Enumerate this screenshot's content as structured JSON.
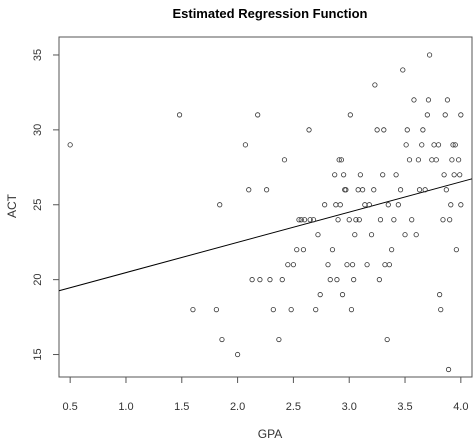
{
  "chart_data": {
    "type": "scatter",
    "title": "Estimated Regression Function",
    "xlabel": "GPA",
    "ylabel": "ACT",
    "xlim": [
      0.4,
      4.1
    ],
    "ylim": [
      13.5,
      36.2
    ],
    "x_ticks": [
      "0.5",
      "1.0",
      "1.5",
      "2.0",
      "2.5",
      "3.0",
      "3.5",
      "4.0"
    ],
    "y_ticks": [
      "15",
      "20",
      "25",
      "30",
      "35"
    ],
    "grid": false,
    "marker": "open-circle",
    "colors": {
      "points": "#333333",
      "line": "#000000",
      "axes": "#555555"
    },
    "regression_line": {
      "intercept": 18.45,
      "slope": 2.02
    },
    "points": [
      {
        "x": 0.5,
        "y": 29
      },
      {
        "x": 1.48,
        "y": 31
      },
      {
        "x": 1.6,
        "y": 18
      },
      {
        "x": 1.81,
        "y": 18
      },
      {
        "x": 1.84,
        "y": 25
      },
      {
        "x": 1.86,
        "y": 16
      },
      {
        "x": 2.0,
        "y": 15
      },
      {
        "x": 2.07,
        "y": 29
      },
      {
        "x": 2.1,
        "y": 26
      },
      {
        "x": 2.13,
        "y": 20
      },
      {
        "x": 2.18,
        "y": 31
      },
      {
        "x": 2.2,
        "y": 20
      },
      {
        "x": 2.26,
        "y": 26
      },
      {
        "x": 2.29,
        "y": 20
      },
      {
        "x": 2.32,
        "y": 18
      },
      {
        "x": 2.37,
        "y": 16
      },
      {
        "x": 2.4,
        "y": 20
      },
      {
        "x": 2.42,
        "y": 28
      },
      {
        "x": 2.45,
        "y": 21
      },
      {
        "x": 2.48,
        "y": 18
      },
      {
        "x": 2.5,
        "y": 21
      },
      {
        "x": 2.53,
        "y": 22
      },
      {
        "x": 2.55,
        "y": 24
      },
      {
        "x": 2.57,
        "y": 24
      },
      {
        "x": 2.59,
        "y": 22
      },
      {
        "x": 2.6,
        "y": 24
      },
      {
        "x": 2.64,
        "y": 30
      },
      {
        "x": 2.65,
        "y": 24
      },
      {
        "x": 2.68,
        "y": 24
      },
      {
        "x": 2.7,
        "y": 18
      },
      {
        "x": 2.72,
        "y": 23
      },
      {
        "x": 2.74,
        "y": 19
      },
      {
        "x": 2.78,
        "y": 25
      },
      {
        "x": 2.81,
        "y": 21
      },
      {
        "x": 2.83,
        "y": 20
      },
      {
        "x": 2.85,
        "y": 22
      },
      {
        "x": 2.87,
        "y": 27
      },
      {
        "x": 2.88,
        "y": 25
      },
      {
        "x": 2.89,
        "y": 20
      },
      {
        "x": 2.9,
        "y": 24
      },
      {
        "x": 2.91,
        "y": 28
      },
      {
        "x": 2.92,
        "y": 25
      },
      {
        "x": 2.93,
        "y": 28
      },
      {
        "x": 2.94,
        "y": 19
      },
      {
        "x": 2.95,
        "y": 27
      },
      {
        "x": 2.96,
        "y": 26
      },
      {
        "x": 2.97,
        "y": 26
      },
      {
        "x": 2.98,
        "y": 21
      },
      {
        "x": 3.0,
        "y": 24
      },
      {
        "x": 3.01,
        "y": 31
      },
      {
        "x": 3.02,
        "y": 18
      },
      {
        "x": 3.03,
        "y": 21
      },
      {
        "x": 3.04,
        "y": 20
      },
      {
        "x": 3.05,
        "y": 23
      },
      {
        "x": 3.06,
        "y": 24
      },
      {
        "x": 3.08,
        "y": 26
      },
      {
        "x": 3.09,
        "y": 24
      },
      {
        "x": 3.1,
        "y": 27
      },
      {
        "x": 3.12,
        "y": 26
      },
      {
        "x": 3.14,
        "y": 25
      },
      {
        "x": 3.16,
        "y": 21
      },
      {
        "x": 3.18,
        "y": 25
      },
      {
        "x": 3.2,
        "y": 23
      },
      {
        "x": 3.22,
        "y": 26
      },
      {
        "x": 3.23,
        "y": 33
      },
      {
        "x": 3.25,
        "y": 30
      },
      {
        "x": 3.27,
        "y": 20
      },
      {
        "x": 3.28,
        "y": 24
      },
      {
        "x": 3.3,
        "y": 27
      },
      {
        "x": 3.31,
        "y": 30
      },
      {
        "x": 3.32,
        "y": 21
      },
      {
        "x": 3.34,
        "y": 16
      },
      {
        "x": 3.35,
        "y": 25
      },
      {
        "x": 3.36,
        "y": 21
      },
      {
        "x": 3.38,
        "y": 22
      },
      {
        "x": 3.4,
        "y": 24
      },
      {
        "x": 3.42,
        "y": 27
      },
      {
        "x": 3.44,
        "y": 25
      },
      {
        "x": 3.46,
        "y": 26
      },
      {
        "x": 3.48,
        "y": 34
      },
      {
        "x": 3.5,
        "y": 23
      },
      {
        "x": 3.51,
        "y": 29
      },
      {
        "x": 3.52,
        "y": 30
      },
      {
        "x": 3.54,
        "y": 28
      },
      {
        "x": 3.56,
        "y": 24
      },
      {
        "x": 3.58,
        "y": 32
      },
      {
        "x": 3.6,
        "y": 23
      },
      {
        "x": 3.62,
        "y": 28
      },
      {
        "x": 3.63,
        "y": 26
      },
      {
        "x": 3.65,
        "y": 29
      },
      {
        "x": 3.66,
        "y": 30
      },
      {
        "x": 3.68,
        "y": 26
      },
      {
        "x": 3.7,
        "y": 31
      },
      {
        "x": 3.71,
        "y": 32
      },
      {
        "x": 3.72,
        "y": 35
      },
      {
        "x": 3.74,
        "y": 28
      },
      {
        "x": 3.76,
        "y": 29
      },
      {
        "x": 3.78,
        "y": 28
      },
      {
        "x": 3.8,
        "y": 29
      },
      {
        "x": 3.81,
        "y": 19
      },
      {
        "x": 3.82,
        "y": 18
      },
      {
        "x": 3.84,
        "y": 24
      },
      {
        "x": 3.85,
        "y": 27
      },
      {
        "x": 3.86,
        "y": 31
      },
      {
        "x": 3.87,
        "y": 26
      },
      {
        "x": 3.88,
        "y": 32
      },
      {
        "x": 3.89,
        "y": 14
      },
      {
        "x": 3.9,
        "y": 24
      },
      {
        "x": 3.92,
        "y": 28
      },
      {
        "x": 3.93,
        "y": 29
      },
      {
        "x": 3.94,
        "y": 27
      },
      {
        "x": 3.95,
        "y": 29
      },
      {
        "x": 3.96,
        "y": 22
      },
      {
        "x": 3.98,
        "y": 28
      },
      {
        "x": 3.99,
        "y": 27
      },
      {
        "x": 4.0,
        "y": 31
      },
      {
        "x": 4.0,
        "y": 25
      },
      {
        "x": 3.91,
        "y": 25
      }
    ]
  }
}
